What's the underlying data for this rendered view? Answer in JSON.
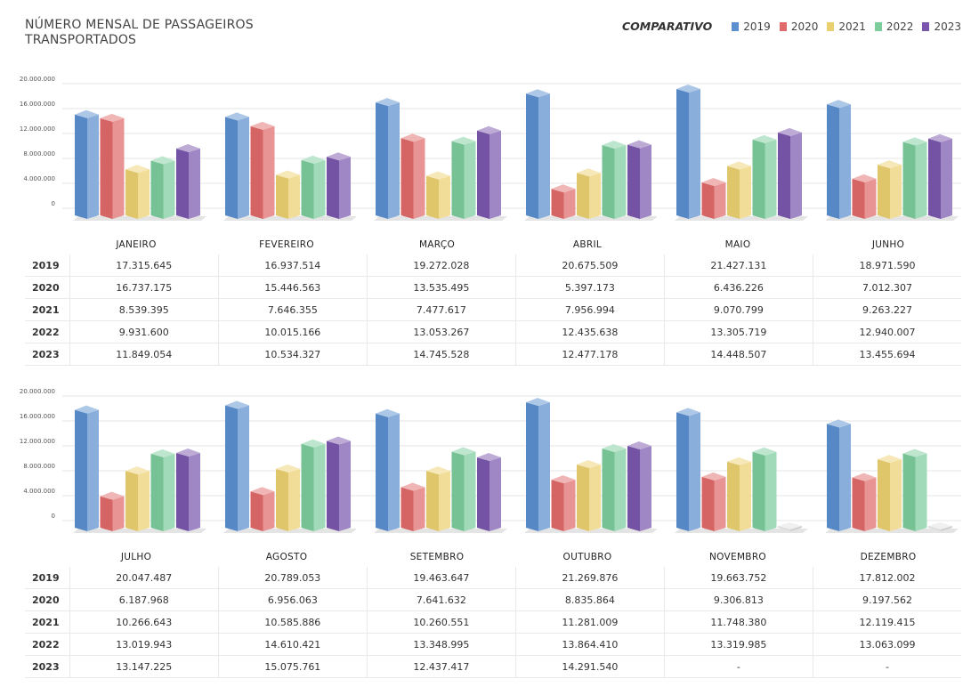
{
  "title": "NÚMERO MENSAL DE PASSAGEIROS TRANSPORTADOS",
  "legend": {
    "title": "COMPARATIVO",
    "items": [
      {
        "label": "2019",
        "color": "#5b8fcf"
      },
      {
        "label": "2020",
        "color": "#e06a6a"
      },
      {
        "label": "2021",
        "color": "#ecd070"
      },
      {
        "label": "2022",
        "color": "#7ccc9c"
      },
      {
        "label": "2023",
        "color": "#7a57ad"
      }
    ]
  },
  "chart_data": [
    {
      "type": "bar",
      "title": "NÚMERO MENSAL DE PASSAGEIROS TRANSPORTADOS",
      "categories": [
        "JANEIRO",
        "FEVEREIRO",
        "MARÇO",
        "ABRIL",
        "MAIO",
        "JUNHO"
      ],
      "yticks": [
        "20.000.000",
        "16.000.000",
        "12.000.000",
        "8.000.000",
        "4.000.000",
        "0"
      ],
      "series": [
        {
          "name": "2019",
          "values": [
            17315645,
            16937514,
            19272028,
            20675509,
            21427131,
            18971590
          ],
          "labels": [
            "17.315.645",
            "16.937.514",
            "19.272.028",
            "20.675.509",
            "21.427.131",
            "18.971.590"
          ]
        },
        {
          "name": "2020",
          "values": [
            16737175,
            15446563,
            13535495,
            5397173,
            6436226,
            7012307
          ],
          "labels": [
            "16.737.175",
            "15.446.563",
            "13.535.495",
            "5.397.173",
            "6.436.226",
            "7.012.307"
          ]
        },
        {
          "name": "2021",
          "values": [
            8539395,
            7646355,
            7477617,
            7956994,
            9070799,
            9263227
          ],
          "labels": [
            "8.539.395",
            "7.646.355",
            "7.477.617",
            "7.956.994",
            "9.070.799",
            "9.263.227"
          ]
        },
        {
          "name": "2022",
          "values": [
            9931600,
            10015166,
            13053267,
            12435638,
            13305719,
            12940007
          ],
          "labels": [
            "9.931.600",
            "10.015.166",
            "13.053.267",
            "12.435.638",
            "13.305.719",
            "12.940.007"
          ]
        },
        {
          "name": "2023",
          "values": [
            11849054,
            10534327,
            14745528,
            12477178,
            14448507,
            13455694
          ],
          "labels": [
            "11.849.054",
            "10.534.327",
            "14.745.528",
            "12.477.178",
            "14.448.507",
            "13.455.694"
          ]
        }
      ]
    },
    {
      "type": "bar",
      "categories": [
        "JULHO",
        "AGOSTO",
        "SETEMBRO",
        "OUTUBRO",
        "NOVEMBRO",
        "DEZEMBRO"
      ],
      "yticks": [
        "20.000.000",
        "16.000.000",
        "12.000.000",
        "8.000.000",
        "4.000.000",
        "0"
      ],
      "series": [
        {
          "name": "2019",
          "values": [
            20047487,
            20789053,
            19463647,
            21269876,
            19663752,
            17812002
          ],
          "labels": [
            "20.047.487",
            "20.789.053",
            "19.463.647",
            "21.269.876",
            "19.663.752",
            "17.812.002"
          ]
        },
        {
          "name": "2020",
          "values": [
            6187968,
            6956063,
            7641632,
            8835864,
            9306813,
            9197562
          ],
          "labels": [
            "6.187.968",
            "6.956.063",
            "7.641.632",
            "8.835.864",
            "9.306.813",
            "9.197.562"
          ]
        },
        {
          "name": "2021",
          "values": [
            10266643,
            10585886,
            10260551,
            11281009,
            11748380,
            12119415
          ],
          "labels": [
            "10.266.643",
            "10.585.886",
            "10.260.551",
            "11.281.009",
            "11.748.380",
            "12.119.415"
          ]
        },
        {
          "name": "2022",
          "values": [
            13019943,
            14610421,
            13348995,
            13864410,
            13319985,
            13063099
          ],
          "labels": [
            "13.019.943",
            "14.610.421",
            "13.348.995",
            "13.864.410",
            "13.319.985",
            "13.063.099"
          ]
        },
        {
          "name": "2023",
          "values": [
            13147225,
            15075761,
            12437417,
            14291540,
            null,
            null
          ],
          "labels": [
            "13.147.225",
            "15.075.761",
            "12.437.417",
            "14.291.540",
            "-",
            "-"
          ]
        }
      ]
    }
  ]
}
